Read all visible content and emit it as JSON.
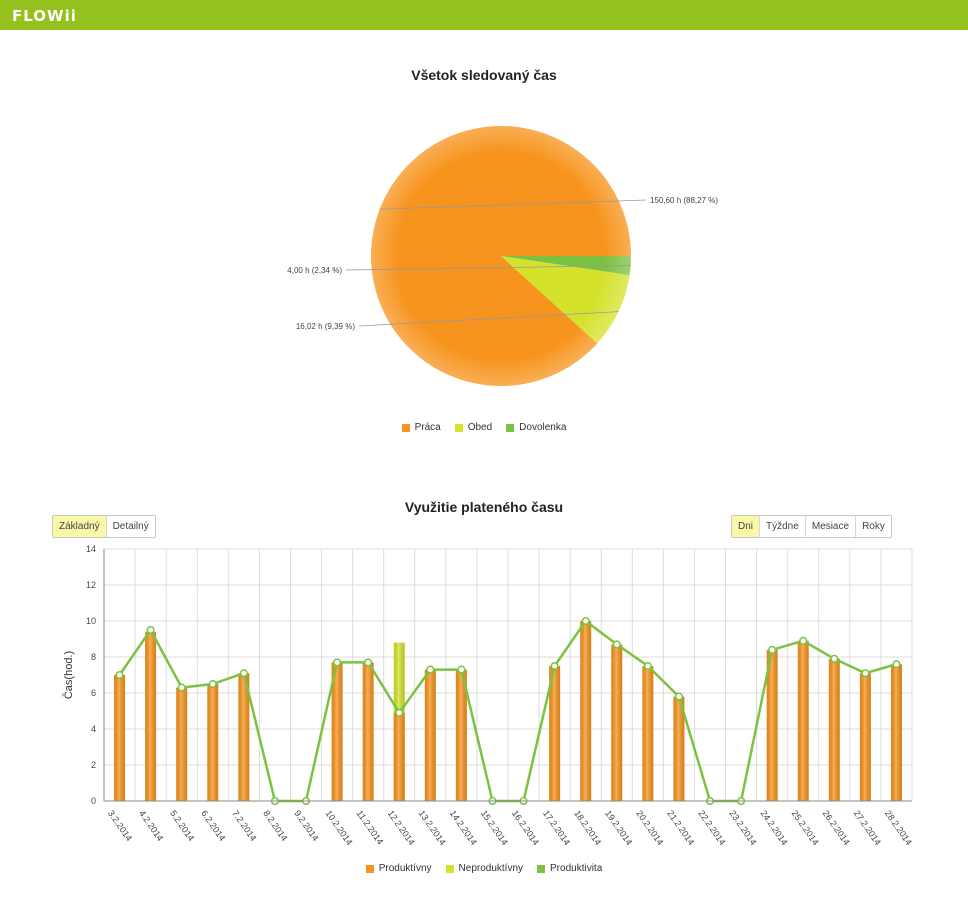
{
  "app": {
    "logo": "FLOWii",
    "accent": "#95c11f"
  },
  "pie": {
    "title": "Všetok sledovaný čas",
    "legend": [
      {
        "label": "Práca",
        "color": "#f7941d"
      },
      {
        "label": "Obed",
        "color": "#d4e22c"
      },
      {
        "label": "Dovolenka",
        "color": "#7cc242"
      }
    ]
  },
  "bar": {
    "title": "Využitie plateného času",
    "view_buttons": [
      {
        "label": "Základný",
        "active": true
      },
      {
        "label": "Detailný",
        "active": false
      }
    ],
    "period_buttons": [
      {
        "label": "Dni",
        "active": true
      },
      {
        "label": "Týždne",
        "active": false
      },
      {
        "label": "Mesiace",
        "active": false
      },
      {
        "label": "Roky",
        "active": false
      }
    ],
    "legend": [
      {
        "label": "Produktívny",
        "color": "#f7941d"
      },
      {
        "label": "Neproduktívny",
        "color": "#d4e22c"
      },
      {
        "label": "Produktivita",
        "color": "#7cc242"
      }
    ]
  },
  "chart_data": [
    {
      "type": "pie",
      "title": "Všetok sledovaný čas",
      "slices": [
        {
          "name": "Práca",
          "value": 150.6,
          "label": "150,60 h (88,27 %)",
          "color": "#f7941d"
        },
        {
          "name": "Obed",
          "value": 16.02,
          "label": "16,02 h (9,39 %)",
          "color": "#d4e22c"
        },
        {
          "name": "Dovolenka",
          "value": 4.0,
          "label": "4,00 h (2,34 %)",
          "color": "#7cc242"
        }
      ],
      "legend_position": "bottom"
    },
    {
      "type": "bar",
      "title": "Využitie plateného času",
      "ylabel": "Čas(hod.)",
      "xlabel": "",
      "ylim": [
        0,
        14
      ],
      "yticks": [
        0,
        2,
        4,
        6,
        8,
        10,
        12,
        14
      ],
      "grid": true,
      "legend_position": "bottom",
      "categories": [
        "3.2.2014",
        "4.2.2014",
        "5.2.2014",
        "6.2.2014",
        "7.2.2014",
        "8.2.2014",
        "9.2.2014",
        "10.2.2014",
        "11.2.2014",
        "12.2.2014",
        "13.2.2014",
        "14.2.2014",
        "15.2.2014",
        "16.2.2014",
        "17.2.2014",
        "18.2.2014",
        "19.2.2014",
        "20.2.2014",
        "21.2.2014",
        "22.2.2014",
        "23.2.2014",
        "24.2.2014",
        "25.2.2014",
        "26.2.2014",
        "27.2.2014",
        "28.2.2014"
      ],
      "series": [
        {
          "name": "Produktívny",
          "kind": "bar",
          "color": "#f7941d",
          "values": [
            7.0,
            9.4,
            6.3,
            6.5,
            7.1,
            0,
            0,
            7.7,
            7.7,
            4.9,
            7.3,
            7.3,
            0,
            0,
            7.5,
            10.0,
            8.7,
            7.5,
            5.8,
            0,
            0,
            8.4,
            8.9,
            7.9,
            7.1,
            7.6
          ]
        },
        {
          "name": "Neproduktívny",
          "kind": "bar",
          "color": "#d4e22c",
          "values": [
            0,
            0,
            0,
            0,
            0,
            0,
            0,
            0,
            0,
            8.8,
            0,
            0,
            0,
            0,
            0,
            0,
            0,
            0,
            0,
            0,
            0,
            0,
            0,
            0,
            0,
            0
          ]
        },
        {
          "name": "Produktivita",
          "kind": "line",
          "color": "#7cc242",
          "values": [
            7.0,
            9.5,
            6.3,
            6.5,
            7.1,
            0,
            0,
            7.7,
            7.7,
            4.9,
            7.3,
            7.3,
            0,
            0,
            7.5,
            10.0,
            8.7,
            7.5,
            5.8,
            0,
            0,
            8.4,
            8.9,
            7.9,
            7.1,
            7.6
          ]
        }
      ]
    }
  ]
}
